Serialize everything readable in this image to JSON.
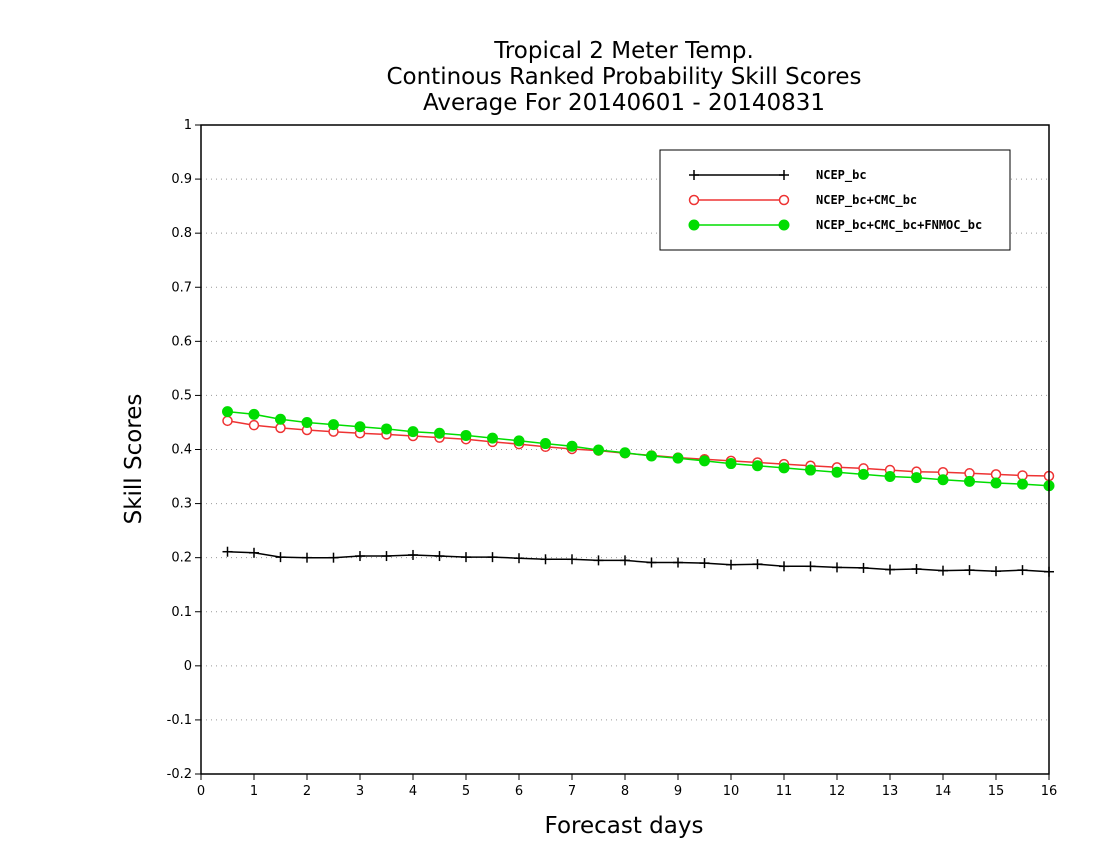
{
  "colors": {
    "background": "#ffffff",
    "axis": "#000000",
    "grid": "#999999",
    "ncep": "#000000",
    "ncep_cmc": "#ee3333",
    "ncep_cmc_fnmoc": "#00dd00"
  },
  "chart_data": {
    "type": "line",
    "title": [
      "Tropical 2 Meter Temp.",
      "Continous Ranked Probability Skill Scores",
      "Average For 20140601 - 20140831"
    ],
    "xlabel": "Forecast days",
    "ylabel": "Skill Scores",
    "xlim": [
      0,
      16
    ],
    "ylim": [
      -0.2,
      1
    ],
    "xticks": [
      0,
      1,
      2,
      3,
      4,
      5,
      6,
      7,
      8,
      9,
      10,
      11,
      12,
      13,
      14,
      15,
      16
    ],
    "yticks": [
      -0.2,
      -0.1,
      0,
      0.1,
      0.2,
      0.3,
      0.4,
      0.5,
      0.6,
      0.7,
      0.8,
      0.9,
      1
    ],
    "ytick_labels": [
      "-0.2",
      "-0.1",
      "0",
      "0.1",
      "0.2",
      "0.3",
      "0.4",
      "0.5",
      "0.6",
      "0.7",
      "0.8",
      "0.9",
      "1"
    ],
    "grid": "horizontal dotted",
    "legend_position": "top-right",
    "x": [
      0.5,
      1,
      1.5,
      2,
      2.5,
      3,
      3.5,
      4,
      4.5,
      5,
      5.5,
      6,
      6.5,
      7,
      7.5,
      8,
      8.5,
      9,
      9.5,
      10,
      10.5,
      11,
      11.5,
      12,
      12.5,
      13,
      13.5,
      14,
      14.5,
      15,
      15.5,
      16
    ],
    "series": [
      {
        "name": "NCEP_bc",
        "marker": "plus",
        "color": "#000000",
        "values": [
          0.211,
          0.209,
          0.201,
          0.2,
          0.2,
          0.203,
          0.203,
          0.205,
          0.203,
          0.201,
          0.201,
          0.199,
          0.197,
          0.197,
          0.195,
          0.195,
          0.191,
          0.191,
          0.19,
          0.187,
          0.188,
          0.184,
          0.184,
          0.182,
          0.181,
          0.178,
          0.179,
          0.176,
          0.177,
          0.175,
          0.177,
          0.174
        ]
      },
      {
        "name": "NCEP_bc+CMC_bc",
        "marker": "open-circle",
        "color": "#ee3333",
        "values": [
          0.453,
          0.445,
          0.44,
          0.436,
          0.433,
          0.43,
          0.428,
          0.425,
          0.422,
          0.419,
          0.414,
          0.41,
          0.405,
          0.401,
          0.398,
          0.393,
          0.389,
          0.385,
          0.382,
          0.379,
          0.376,
          0.373,
          0.37,
          0.367,
          0.365,
          0.362,
          0.359,
          0.358,
          0.356,
          0.354,
          0.352,
          0.351
        ]
      },
      {
        "name": "NCEP_bc+CMC_bc+FNMOC_bc",
        "marker": "filled-circle",
        "color": "#00dd00",
        "values": [
          0.47,
          0.465,
          0.456,
          0.45,
          0.446,
          0.442,
          0.438,
          0.433,
          0.43,
          0.426,
          0.421,
          0.416,
          0.411,
          0.406,
          0.399,
          0.394,
          0.388,
          0.384,
          0.379,
          0.374,
          0.37,
          0.366,
          0.362,
          0.358,
          0.354,
          0.35,
          0.348,
          0.344,
          0.341,
          0.338,
          0.336,
          0.333
        ]
      }
    ]
  }
}
